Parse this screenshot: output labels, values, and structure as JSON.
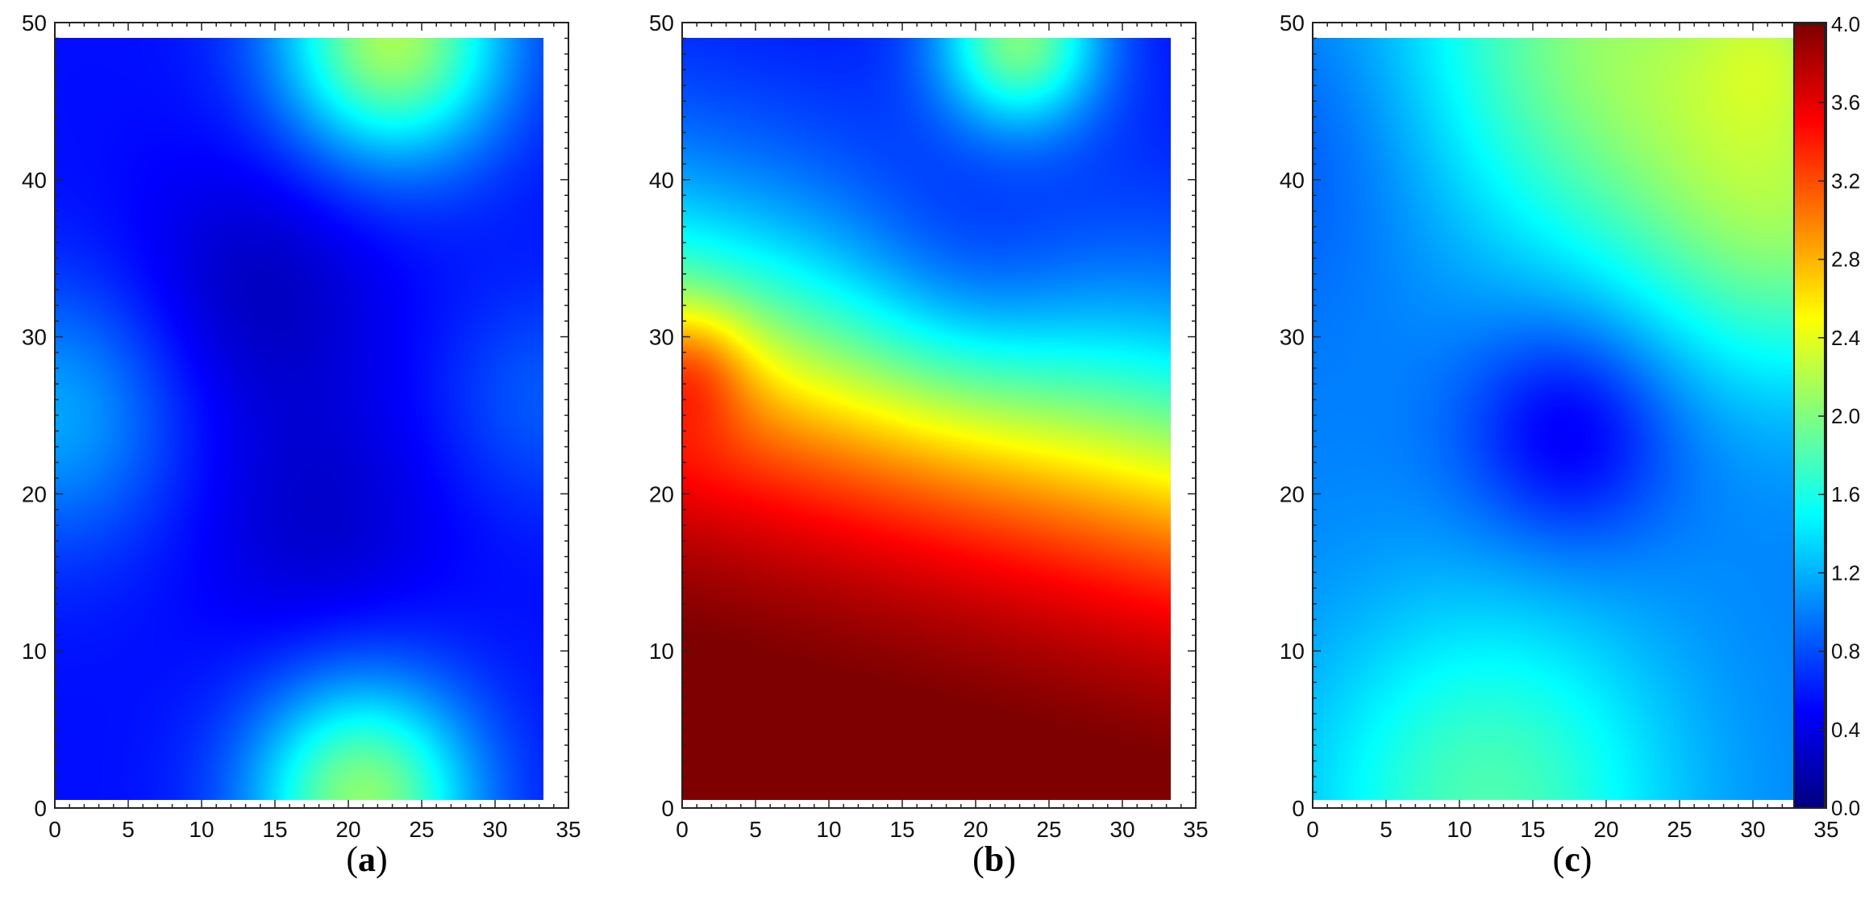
{
  "figure": {
    "panels": [
      {
        "id": "a",
        "caption": "a"
      },
      {
        "id": "b",
        "caption": "b"
      },
      {
        "id": "c",
        "caption": "c"
      }
    ]
  },
  "chart_data": [
    {
      "type": "heatmap",
      "panel": "a",
      "xlim": [
        0,
        35
      ],
      "ylim": [
        0,
        50
      ],
      "x_ticks": [
        0,
        5,
        10,
        15,
        20,
        25,
        30,
        35
      ],
      "y_ticks": [
        0,
        10,
        20,
        30,
        40,
        50
      ],
      "data_extent": {
        "x": [
          0,
          33.3
        ],
        "y": [
          0.5,
          49
        ]
      },
      "value_range": [
        0,
        4
      ],
      "base_value": 0.55,
      "features": [
        {
          "x": 23,
          "y": 49,
          "amplitude": 1.6,
          "spread": 5.5
        },
        {
          "x": 21,
          "y": 0.5,
          "amplitude": 1.5,
          "spread": 5.5
        },
        {
          "x": 0,
          "y": 25,
          "amplitude": 0.6,
          "spread": 6
        },
        {
          "x": 33.3,
          "y": 26,
          "amplitude": 0.3,
          "spread": 5
        },
        {
          "x": 14,
          "y": 33,
          "amplitude": -0.3,
          "spread": 6
        },
        {
          "x": 18,
          "y": 18,
          "amplitude": -0.25,
          "spread": 6
        }
      ]
    },
    {
      "type": "heatmap",
      "panel": "b",
      "xlim": [
        0,
        35
      ],
      "ylim": [
        0,
        50
      ],
      "x_ticks": [
        0,
        5,
        10,
        15,
        20,
        25,
        30,
        35
      ],
      "y_ticks": [
        0,
        10,
        20,
        30,
        40,
        50
      ],
      "data_extent": {
        "x": [
          0,
          33.3
        ],
        "y": [
          0.5,
          49
        ]
      },
      "value_range": [
        0,
        4
      ],
      "profile": {
        "bottom_value": 4.2,
        "top_value": 0.5,
        "transition_y_at_left": 30,
        "transition_y_at_right": 22,
        "features": [
          {
            "x": 23,
            "y": 49,
            "amplitude": 1.4,
            "spread": 4
          },
          {
            "x": 19,
            "y": 33,
            "amplitude": -0.3,
            "spread": 6
          },
          {
            "x": 0.5,
            "y": 28,
            "amplitude": 0.6,
            "spread": 3
          }
        ]
      }
    },
    {
      "type": "heatmap",
      "panel": "c",
      "xlim": [
        0,
        35
      ],
      "ylim": [
        0,
        50
      ],
      "x_ticks": [
        0,
        5,
        10,
        15,
        20,
        25,
        30,
        35
      ],
      "y_ticks": [
        0,
        10,
        20,
        30,
        40,
        50
      ],
      "data_extent": {
        "x": [
          0,
          33.3
        ],
        "y": [
          0.5,
          49
        ]
      },
      "value_range": [
        0,
        4
      ],
      "base_value": 1.0,
      "features": [
        {
          "x": 17.5,
          "y": 24,
          "amplitude": -0.6,
          "spread": 5
        },
        {
          "x": 20,
          "y": 49,
          "amplitude": 1.0,
          "spread": 10
        },
        {
          "x": 33.3,
          "y": 38,
          "amplitude": 0.9,
          "spread": 8
        },
        {
          "x": 32,
          "y": 49,
          "amplitude": 0.4,
          "spread": 4
        },
        {
          "x": 12,
          "y": 0.5,
          "amplitude": 0.8,
          "spread": 9
        },
        {
          "x": 0,
          "y": 42,
          "amplitude": -0.2,
          "spread": 7
        }
      ]
    }
  ],
  "colorbar": {
    "min": 0.0,
    "max": 4.0,
    "tick_labels": [
      "0.0",
      "0.4",
      "0.8",
      "1.2",
      "1.6",
      "2.0",
      "2.4",
      "2.8",
      "3.2",
      "3.6",
      "4.0"
    ],
    "colormap": "jet",
    "stops": [
      "#00007f",
      "#0000ff",
      "#007fff",
      "#00ffff",
      "#7fff7f",
      "#ffff00",
      "#ff7f00",
      "#ff0000",
      "#7f0000"
    ]
  }
}
